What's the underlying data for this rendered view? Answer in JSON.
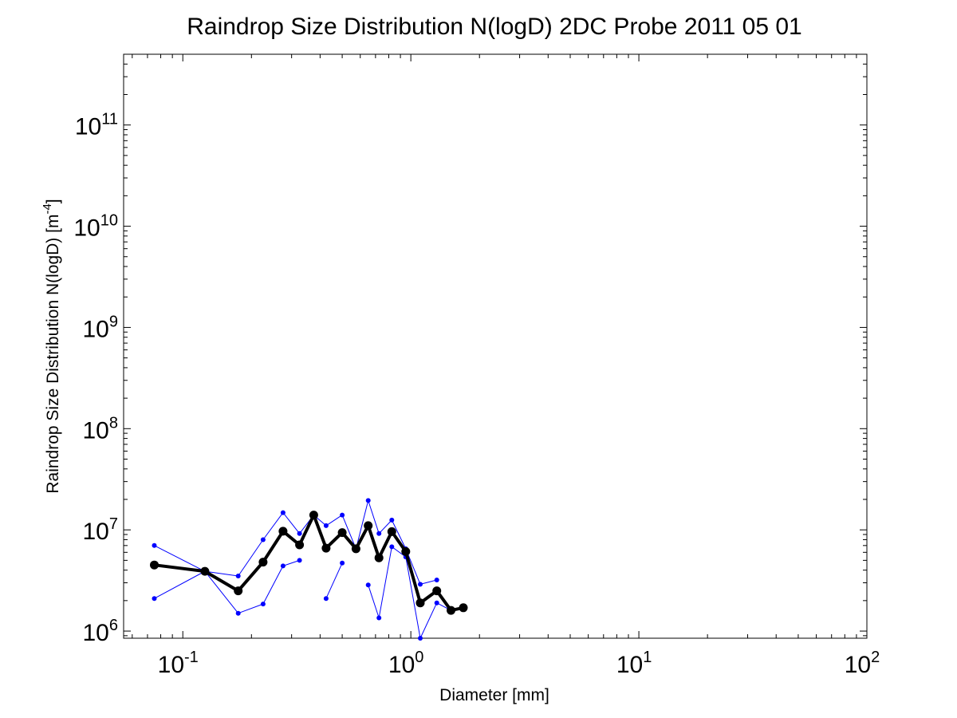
{
  "chart_data": {
    "type": "line",
    "title": "Raindrop Size Distribution N(logD) 2DC Probe 2011 05 01",
    "xlabel": "Diameter [mm]",
    "ylabel_main": "Raindrop Size Distribution N(logD) [m",
    "ylabel_exp": "-4",
    "ylabel_tail": "]",
    "xscale": "log",
    "yscale": "log",
    "xlim": [
      0.055,
      100
    ],
    "ylim": [
      850000,
      500000000000
    ],
    "grid": false,
    "x_ticks": [
      {
        "base": "10",
        "exp": "-1",
        "value": 0.1
      },
      {
        "base": "10",
        "exp": "0",
        "value": 1
      },
      {
        "base": "10",
        "exp": "1",
        "value": 10
      },
      {
        "base": "10",
        "exp": "2",
        "value": 100
      }
    ],
    "y_ticks": [
      {
        "base": "10",
        "exp": "6",
        "value": 1000000
      },
      {
        "base": "10",
        "exp": "7",
        "value": 10000000
      },
      {
        "base": "10",
        "exp": "8",
        "value": 100000000
      },
      {
        "base": "10",
        "exp": "9",
        "value": 1000000000
      },
      {
        "base": "10",
        "exp": "10",
        "value": 10000000000
      },
      {
        "base": "10",
        "exp": "11",
        "value": 100000000000
      }
    ],
    "series": [
      {
        "color": "#000000",
        "style": "mean",
        "points": [
          [
            0.075,
            4500000
          ],
          [
            0.125,
            3900000
          ],
          [
            0.175,
            2500000
          ],
          [
            0.225,
            4800000
          ],
          [
            0.275,
            9700000
          ],
          [
            0.325,
            7100000
          ],
          [
            0.375,
            14000000
          ],
          [
            0.425,
            6600000
          ],
          [
            0.5,
            9400000
          ],
          [
            0.575,
            6500000
          ],
          [
            0.65,
            11000000
          ],
          [
            0.725,
            5300000
          ],
          [
            0.825,
            9600000
          ],
          [
            0.95,
            6100000
          ],
          [
            1.1,
            1900000
          ],
          [
            1.3,
            2500000
          ],
          [
            1.5,
            1600000
          ],
          [
            1.7,
            1700000
          ]
        ]
      },
      {
        "color": "#0000ff",
        "style": "upper",
        "points": [
          [
            0.075,
            7000000
          ],
          [
            0.125,
            3900000
          ],
          [
            0.175,
            3500000
          ],
          [
            0.225,
            8000000
          ],
          [
            0.275,
            14800000
          ],
          [
            0.325,
            9200000
          ],
          [
            0.375,
            14000000
          ],
          [
            0.425,
            11000000
          ],
          [
            0.5,
            14000000
          ],
          [
            0.575,
            6500000
          ],
          [
            0.65,
            19500000
          ],
          [
            0.725,
            9200000
          ],
          [
            0.825,
            12500000
          ],
          [
            0.95,
            6500000
          ],
          [
            1.1,
            2900000
          ],
          [
            1.3,
            3200000
          ]
        ]
      },
      {
        "color": "#0000ff",
        "style": "lower-a",
        "points": [
          [
            0.075,
            2100000
          ],
          [
            0.125,
            3900000
          ],
          [
            0.175,
            1500000
          ],
          [
            0.225,
            1850000
          ],
          [
            0.275,
            4400000
          ],
          [
            0.325,
            5000000
          ]
        ]
      },
      {
        "color": "#0000ff",
        "style": "lower-b",
        "points": [
          [
            0.425,
            2100000
          ],
          [
            0.5,
            4700000
          ]
        ]
      },
      {
        "color": "#0000ff",
        "style": "lower-c",
        "points": [
          [
            0.65,
            2850000
          ],
          [
            0.725,
            1350000
          ],
          [
            0.825,
            6800000
          ],
          [
            0.95,
            5400000
          ],
          [
            1.1,
            850000
          ],
          [
            1.3,
            1900000
          ],
          [
            1.5,
            1600000
          ]
        ]
      }
    ]
  }
}
